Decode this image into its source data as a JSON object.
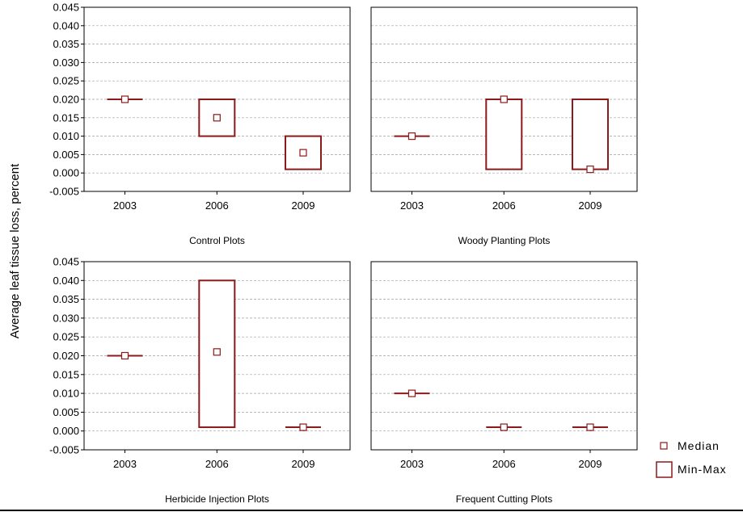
{
  "chart_data": {
    "type": "box",
    "ylabel": "Average leaf tissue loss, percent",
    "ylim": [
      -0.005,
      0.045
    ],
    "yticks": [
      "0.045",
      "0.040",
      "0.035",
      "0.030",
      "0.025",
      "0.020",
      "0.015",
      "0.010",
      "0.005",
      "0.000",
      "-0.005"
    ],
    "categories": [
      "2003",
      "2006",
      "2009"
    ],
    "grid": true,
    "colors": {
      "box": "#8b1a1a",
      "axis": "#000000",
      "grid": "#a0a0a0"
    },
    "legend": {
      "position": "bottom-right",
      "median_label": "Median",
      "minmax_label": "Min-Max"
    },
    "panels": [
      {
        "title": "Control Plots",
        "boxes": [
          {
            "year": "2003",
            "min": 0.02,
            "max": 0.02,
            "median": 0.02
          },
          {
            "year": "2006",
            "min": 0.01,
            "max": 0.02,
            "median": 0.015
          },
          {
            "year": "2009",
            "min": 0.001,
            "max": 0.01,
            "median": 0.0055
          }
        ]
      },
      {
        "title": "Woody Planting Plots",
        "boxes": [
          {
            "year": "2003",
            "min": 0.01,
            "max": 0.01,
            "median": 0.01
          },
          {
            "year": "2006",
            "min": 0.001,
            "max": 0.02,
            "median": 0.02
          },
          {
            "year": "2009",
            "min": 0.001,
            "max": 0.02,
            "median": 0.001
          }
        ]
      },
      {
        "title": "Herbicide Injection Plots",
        "boxes": [
          {
            "year": "2003",
            "min": 0.02,
            "max": 0.02,
            "median": 0.02
          },
          {
            "year": "2006",
            "min": 0.001,
            "max": 0.04,
            "median": 0.021
          },
          {
            "year": "2009",
            "min": 0.001,
            "max": 0.001,
            "median": 0.001
          }
        ]
      },
      {
        "title": "Frequent Cutting Plots",
        "boxes": [
          {
            "year": "2003",
            "min": 0.01,
            "max": 0.01,
            "median": 0.01
          },
          {
            "year": "2006",
            "min": 0.001,
            "max": 0.001,
            "median": 0.001
          },
          {
            "year": "2009",
            "min": 0.001,
            "max": 0.001,
            "median": 0.001
          }
        ]
      }
    ]
  }
}
